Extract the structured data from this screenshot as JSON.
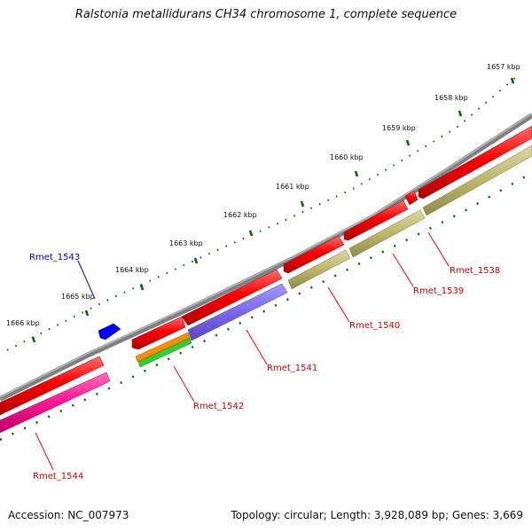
{
  "title": "Ralstonia metallidurans CH34 chromosome 1, complete sequence",
  "footer": {
    "accession": "Accession: NC_007973",
    "summary": "Topology: circular; Length: 3,928,089 bp; Genes: 3,669"
  },
  "colors": {
    "backbone": "#808080",
    "cds_forward": "#ff0000",
    "cds_reverse": "#ff0000",
    "cog_olive": "#bdb76b",
    "cog_purple": "#7b68ee",
    "cog_orange": "#ff8c00",
    "cog_green": "#32cd32",
    "cog_pink": "#ff1493",
    "ruler_ticks": "#006400",
    "rna_blue": "#0000ff",
    "label_blue": "#0000cc",
    "label_red": "#cc0000"
  },
  "ruler": {
    "labels": [
      "1657 kbp",
      "1658 kbp",
      "1659 kbp",
      "1660 kbp",
      "1661 kbp",
      "1662 kbp",
      "1663 kbp",
      "1664 kbp",
      "1665 kbp",
      "1666 kbp"
    ]
  },
  "gene_labels": [
    {
      "text": "Rmet_1538",
      "color": "red"
    },
    {
      "text": "Rmet_1539",
      "color": "red"
    },
    {
      "text": "Rmet_1540",
      "color": "red"
    },
    {
      "text": "Rmet_1541",
      "color": "red"
    },
    {
      "text": "Rmet_1542",
      "color": "red"
    },
    {
      "text": "Rmet_1543",
      "color": "blue"
    },
    {
      "text": "Rmet_1544",
      "color": "red"
    }
  ]
}
